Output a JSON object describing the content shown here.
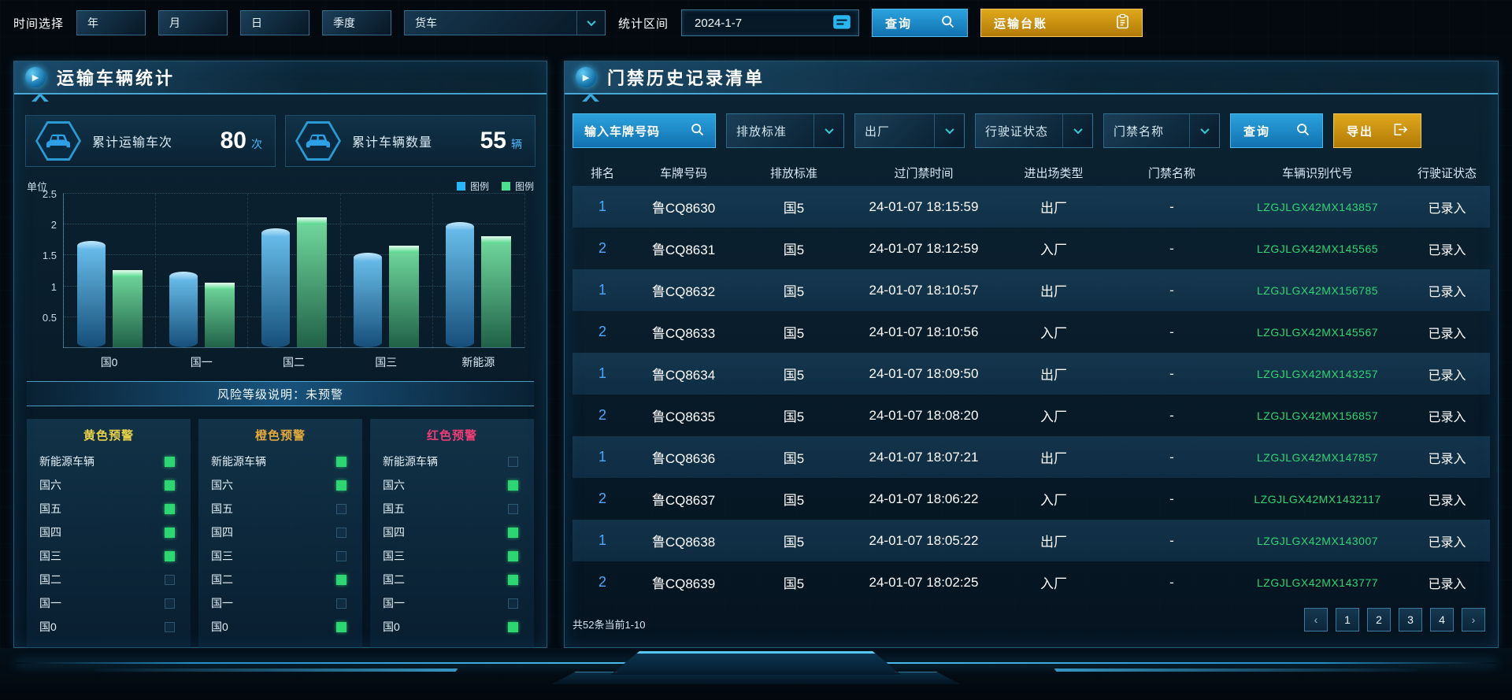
{
  "topbar": {
    "time_label": "时间选择",
    "time_buttons": [
      "年",
      "月",
      "日",
      "季度"
    ],
    "vehicle_select": "货车",
    "range_label": "统计区间",
    "date_value": "2024-1-7",
    "query_label": "查询",
    "ledger_label": "运输台账"
  },
  "left_panel": {
    "title": "运输车辆统计",
    "stats": [
      {
        "label": "累计运输车次",
        "value": "80",
        "unit": "次"
      },
      {
        "label": "累计车辆数量",
        "value": "55",
        "unit": "辆"
      }
    ],
    "risk_banner": "风险等级说明：未预警",
    "warnings": [
      {
        "title": "黄色预警",
        "title_color": "#e9d24a",
        "items": [
          {
            "label": "新能源车辆",
            "checked": true
          },
          {
            "label": "国六",
            "checked": true
          },
          {
            "label": "国五",
            "checked": true
          },
          {
            "label": "国四",
            "checked": true
          },
          {
            "label": "国三",
            "checked": true
          },
          {
            "label": "国二",
            "checked": false
          },
          {
            "label": "国一",
            "checked": false
          },
          {
            "label": "国0",
            "checked": false
          }
        ]
      },
      {
        "title": "橙色预警",
        "title_color": "#e2a83c",
        "items": [
          {
            "label": "新能源车辆",
            "checked": true
          },
          {
            "label": "国六",
            "checked": true
          },
          {
            "label": "国五",
            "checked": false
          },
          {
            "label": "国四",
            "checked": false
          },
          {
            "label": "国三",
            "checked": false
          },
          {
            "label": "国二",
            "checked": true
          },
          {
            "label": "国一",
            "checked": false
          },
          {
            "label": "国0",
            "checked": true
          }
        ]
      },
      {
        "title": "红色预警",
        "title_color": "#f03d76",
        "items": [
          {
            "label": "新能源车辆",
            "checked": false
          },
          {
            "label": "国六",
            "checked": true
          },
          {
            "label": "国五",
            "checked": false
          },
          {
            "label": "国四",
            "checked": true
          },
          {
            "label": "国三",
            "checked": true
          },
          {
            "label": "国二",
            "checked": true
          },
          {
            "label": "国一",
            "checked": false
          },
          {
            "label": "国0",
            "checked": true
          }
        ]
      }
    ]
  },
  "chart_data": {
    "type": "bar",
    "categories": [
      "国0",
      "国一",
      "国二",
      "国三",
      "新能源"
    ],
    "series": [
      {
        "name": "图例",
        "color": "#29b6f6",
        "values": [
          1.65,
          1.15,
          1.85,
          1.45,
          1.95
        ]
      },
      {
        "name": "图例",
        "color": "#4ce08f",
        "values": [
          1.25,
          1.05,
          2.1,
          1.65,
          1.8
        ]
      }
    ],
    "title": "",
    "xlabel": "",
    "ylabel": "单位",
    "ylim": [
      0,
      2.5
    ],
    "yticks": [
      0.5,
      1,
      1.5,
      2,
      2.5
    ],
    "grid": true,
    "legend_position": "top-right"
  },
  "right_panel": {
    "title": "门禁历史记录清单",
    "filters": {
      "plate_placeholder": "输入车牌号码",
      "dropdowns": [
        "排放标准",
        "出厂",
        "行驶证状态",
        "门禁名称"
      ],
      "query_label": "查询",
      "export_label": "导出"
    },
    "table": {
      "headers": [
        "排名",
        "车牌号码",
        "排放标准",
        "过门禁时间",
        "进出场类型",
        "门禁名称",
        "车辆识别代号",
        "行驶证状态"
      ],
      "rows": [
        [
          "1",
          "鲁CQ8630",
          "国5",
          "24-01-07 18:15:59",
          "出厂",
          "-",
          "LZGJLGX42MX143857",
          "已录入"
        ],
        [
          "2",
          "鲁CQ8631",
          "国5",
          "24-01-07 18:12:59",
          "入厂",
          "-",
          "LZGJLGX42MX145565",
          "已录入"
        ],
        [
          "1",
          "鲁CQ8632",
          "国5",
          "24-01-07 18:10:57",
          "出厂",
          "-",
          "LZGJLGX42MX156785",
          "已录入"
        ],
        [
          "2",
          "鲁CQ8633",
          "国5",
          "24-01-07 18:10:56",
          "入厂",
          "-",
          "LZGJLGX42MX145567",
          "已录入"
        ],
        [
          "1",
          "鲁CQ8634",
          "国5",
          "24-01-07 18:09:50",
          "出厂",
          "-",
          "LZGJLGX42MX143257",
          "已录入"
        ],
        [
          "2",
          "鲁CQ8635",
          "国5",
          "24-01-07 18:08:20",
          "入厂",
          "-",
          "LZGJLGX42MX156857",
          "已录入"
        ],
        [
          "1",
          "鲁CQ8636",
          "国5",
          "24-01-07 18:07:21",
          "出厂",
          "-",
          "LZGJLGX42MX147857",
          "已录入"
        ],
        [
          "2",
          "鲁CQ8637",
          "国5",
          "24-01-07 18:06:22",
          "入厂",
          "-",
          "LZGJLGX42MX1432117",
          "已录入"
        ],
        [
          "1",
          "鲁CQ8638",
          "国5",
          "24-01-07 18:05:22",
          "出厂",
          "-",
          "LZGJLGX42MX143007",
          "已录入"
        ],
        [
          "2",
          "鲁CQ8639",
          "国5",
          "24-01-07 18:02:25",
          "入厂",
          "-",
          "LZGJLGX42MX143777",
          "已录入"
        ]
      ]
    },
    "pagination": {
      "summary": "共52条当前1-10",
      "prev": "‹",
      "next": "›",
      "pages": [
        "1",
        "2",
        "3",
        "4"
      ]
    }
  },
  "colors": {
    "accent_blue": "#2596d1",
    "accent_gold": "#d9940e",
    "vin_green": "#2ed573",
    "rank_blue": "#4aa8ff",
    "check_green": "#2ed573",
    "panel_border": "#3c8cbe"
  }
}
